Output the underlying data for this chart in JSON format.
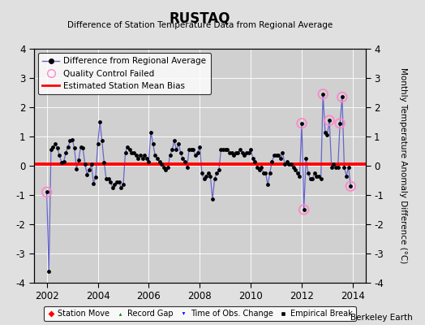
{
  "title": "RUSTAQ",
  "subtitle": "Difference of Station Temperature Data from Regional Average",
  "ylabel": "Monthly Temperature Anomaly Difference (°C)",
  "xlim": [
    2001.5,
    2014.5
  ],
  "ylim": [
    -4,
    4
  ],
  "yticks": [
    -4,
    -3,
    -2,
    -1,
    0,
    1,
    2,
    3,
    4
  ],
  "xticks": [
    2002,
    2004,
    2006,
    2008,
    2010,
    2012,
    2014
  ],
  "mean_bias": 0.05,
  "background_color": "#e0e0e0",
  "plot_bg_color": "#d0d0d0",
  "line_color": "#6666cc",
  "dot_color": "#000000",
  "bias_color": "#ff0000",
  "qc_color": "#ff88cc",
  "time_series": [
    [
      2002.0,
      -0.9
    ],
    [
      2002.083,
      -3.6
    ],
    [
      2002.167,
      0.55
    ],
    [
      2002.25,
      0.65
    ],
    [
      2002.333,
      0.75
    ],
    [
      2002.417,
      0.6
    ],
    [
      2002.5,
      0.35
    ],
    [
      2002.583,
      0.1
    ],
    [
      2002.667,
      0.15
    ],
    [
      2002.75,
      0.45
    ],
    [
      2002.833,
      0.65
    ],
    [
      2002.917,
      0.85
    ],
    [
      2003.0,
      0.9
    ],
    [
      2003.083,
      0.6
    ],
    [
      2003.167,
      -0.1
    ],
    [
      2003.25,
      0.2
    ],
    [
      2003.333,
      0.65
    ],
    [
      2003.417,
      0.6
    ],
    [
      2003.5,
      0.05
    ],
    [
      2003.583,
      -0.3
    ],
    [
      2003.667,
      -0.15
    ],
    [
      2003.75,
      0.05
    ],
    [
      2003.833,
      -0.6
    ],
    [
      2003.917,
      -0.4
    ],
    [
      2004.0,
      0.75
    ],
    [
      2004.083,
      1.5
    ],
    [
      2004.167,
      0.85
    ],
    [
      2004.25,
      0.1
    ],
    [
      2004.333,
      -0.45
    ],
    [
      2004.417,
      -0.45
    ],
    [
      2004.5,
      -0.55
    ],
    [
      2004.583,
      -0.75
    ],
    [
      2004.667,
      -0.65
    ],
    [
      2004.75,
      -0.55
    ],
    [
      2004.833,
      -0.55
    ],
    [
      2004.917,
      -0.75
    ],
    [
      2005.0,
      -0.65
    ],
    [
      2005.083,
      0.45
    ],
    [
      2005.167,
      0.65
    ],
    [
      2005.25,
      0.55
    ],
    [
      2005.333,
      0.45
    ],
    [
      2005.417,
      0.45
    ],
    [
      2005.5,
      0.35
    ],
    [
      2005.583,
      0.25
    ],
    [
      2005.667,
      0.35
    ],
    [
      2005.75,
      0.25
    ],
    [
      2005.833,
      0.35
    ],
    [
      2005.917,
      0.25
    ],
    [
      2006.0,
      0.15
    ],
    [
      2006.083,
      1.15
    ],
    [
      2006.167,
      0.75
    ],
    [
      2006.25,
      0.35
    ],
    [
      2006.333,
      0.25
    ],
    [
      2006.417,
      0.15
    ],
    [
      2006.5,
      0.05
    ],
    [
      2006.583,
      -0.05
    ],
    [
      2006.667,
      -0.15
    ],
    [
      2006.75,
      -0.05
    ],
    [
      2006.833,
      0.35
    ],
    [
      2006.917,
      0.55
    ],
    [
      2007.0,
      0.85
    ],
    [
      2007.083,
      0.55
    ],
    [
      2007.167,
      0.75
    ],
    [
      2007.25,
      0.45
    ],
    [
      2007.333,
      0.25
    ],
    [
      2007.417,
      0.15
    ],
    [
      2007.5,
      -0.05
    ],
    [
      2007.583,
      0.55
    ],
    [
      2007.667,
      0.55
    ],
    [
      2007.75,
      0.55
    ],
    [
      2007.833,
      0.35
    ],
    [
      2007.917,
      0.45
    ],
    [
      2008.0,
      0.65
    ],
    [
      2008.083,
      -0.25
    ],
    [
      2008.167,
      -0.45
    ],
    [
      2008.25,
      -0.35
    ],
    [
      2008.333,
      -0.25
    ],
    [
      2008.417,
      -0.35
    ],
    [
      2008.5,
      -1.15
    ],
    [
      2008.583,
      -0.45
    ],
    [
      2008.667,
      -0.25
    ],
    [
      2008.75,
      -0.15
    ],
    [
      2008.833,
      0.55
    ],
    [
      2008.917,
      0.55
    ],
    [
      2009.0,
      0.55
    ],
    [
      2009.083,
      0.55
    ],
    [
      2009.167,
      0.45
    ],
    [
      2009.25,
      0.45
    ],
    [
      2009.333,
      0.35
    ],
    [
      2009.417,
      0.45
    ],
    [
      2009.5,
      0.45
    ],
    [
      2009.583,
      0.55
    ],
    [
      2009.667,
      0.45
    ],
    [
      2009.75,
      0.35
    ],
    [
      2009.833,
      0.45
    ],
    [
      2009.917,
      0.45
    ],
    [
      2010.0,
      0.55
    ],
    [
      2010.083,
      0.25
    ],
    [
      2010.167,
      0.15
    ],
    [
      2010.25,
      -0.05
    ],
    [
      2010.333,
      -0.15
    ],
    [
      2010.417,
      -0.05
    ],
    [
      2010.5,
      -0.25
    ],
    [
      2010.583,
      -0.25
    ],
    [
      2010.667,
      -0.65
    ],
    [
      2010.75,
      -0.25
    ],
    [
      2010.833,
      0.15
    ],
    [
      2010.917,
      0.35
    ],
    [
      2011.0,
      0.35
    ],
    [
      2011.083,
      0.35
    ],
    [
      2011.167,
      0.25
    ],
    [
      2011.25,
      0.45
    ],
    [
      2011.333,
      0.05
    ],
    [
      2011.417,
      0.15
    ],
    [
      2011.5,
      0.05
    ],
    [
      2011.583,
      0.05
    ],
    [
      2011.667,
      -0.05
    ],
    [
      2011.75,
      -0.15
    ],
    [
      2011.833,
      -0.25
    ],
    [
      2011.917,
      -0.35
    ],
    [
      2012.0,
      1.45
    ],
    [
      2012.083,
      -1.5
    ],
    [
      2012.167,
      0.25
    ],
    [
      2012.25,
      -0.25
    ],
    [
      2012.333,
      -0.45
    ],
    [
      2012.417,
      -0.45
    ],
    [
      2012.5,
      -0.25
    ],
    [
      2012.583,
      -0.35
    ],
    [
      2012.667,
      -0.35
    ],
    [
      2012.75,
      -0.45
    ],
    [
      2012.833,
      2.45
    ],
    [
      2012.917,
      1.15
    ],
    [
      2013.0,
      1.05
    ],
    [
      2013.083,
      1.55
    ],
    [
      2013.167,
      -0.05
    ],
    [
      2013.25,
      0.05
    ],
    [
      2013.333,
      -0.05
    ],
    [
      2013.417,
      -0.05
    ],
    [
      2013.5,
      1.45
    ],
    [
      2013.583,
      2.35
    ],
    [
      2013.667,
      -0.05
    ],
    [
      2013.75,
      -0.35
    ],
    [
      2013.833,
      -0.05
    ],
    [
      2013.917,
      -0.7
    ]
  ],
  "qc_failed": [
    [
      2002.0,
      -0.9
    ],
    [
      2012.0,
      1.45
    ],
    [
      2012.083,
      -1.5
    ],
    [
      2012.833,
      2.45
    ],
    [
      2013.083,
      1.55
    ],
    [
      2013.5,
      1.45
    ],
    [
      2013.583,
      2.35
    ],
    [
      2013.917,
      -0.7
    ]
  ],
  "legend1_items": [
    "Difference from Regional Average",
    "Quality Control Failed",
    "Estimated Station Mean Bias"
  ],
  "legend2_items": [
    "Station Move",
    "Record Gap",
    "Time of Obs. Change",
    "Empirical Break"
  ],
  "berkeley_earth_text": "Berkeley Earth"
}
